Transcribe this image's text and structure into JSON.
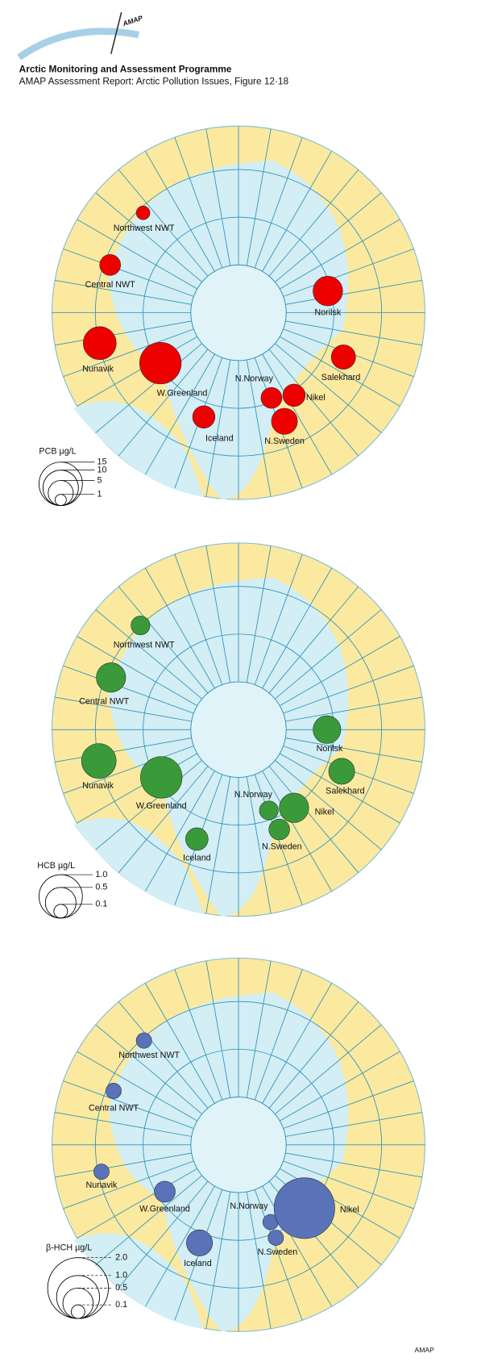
{
  "header": {
    "logo": "AMAP",
    "title": "Arctic Monitoring and Assessment Programme",
    "subtitle": "AMAP Assessment Report: Arctic Pollution Issues, Figure 12·18"
  },
  "maps": [
    {
      "legend_title": "PCB µg/L",
      "color": "#ee0000",
      "legend_ticks": [
        15,
        10,
        5,
        1
      ],
      "sites": [
        {
          "name": "Northwest NWT",
          "value": 1.5
        },
        {
          "name": "Central NWT",
          "value": 3.5
        },
        {
          "name": "Nunavik",
          "value": 8.7
        },
        {
          "name": "W.Greenland",
          "value": 13.8
        },
        {
          "name": "Iceland",
          "value": 4
        },
        {
          "name": "Norilsk",
          "value": 7
        },
        {
          "name": "Salekhard",
          "value": 4.7
        },
        {
          "name": "N.Norway",
          "value": 3.5
        },
        {
          "name": "Nikel",
          "value": 4
        },
        {
          "name": "N.Sweden",
          "value": 5.4
        }
      ]
    },
    {
      "legend_title": "HCB µg/L",
      "color": "#3a9a3a",
      "legend_ticks": [
        {
          "value": 1,
          "label": "1.0"
        },
        0.5,
        0.1
      ],
      "sites": [
        {
          "name": "Northwest NWT",
          "value": 0.19
        },
        {
          "name": "Central NWT",
          "value": 0.46
        },
        {
          "name": "Nunavik",
          "value": 0.64
        },
        {
          "name": "W.Greenland",
          "value": 0.92
        },
        {
          "name": "Iceland",
          "value": 0.27
        },
        {
          "name": "Norilsk",
          "value": 0.41
        },
        {
          "name": "Salekhard",
          "value": 0.36
        },
        {
          "name": "N.Norway",
          "value": 0.19
        },
        {
          "name": "Nikel",
          "value": 0.46
        },
        {
          "name": "N.Sweden",
          "value": 0.23
        }
      ]
    },
    {
      "legend_title": "β-HCH µg/L",
      "color": "#5a72b8",
      "legend_ticks": [
        {
          "value": 2,
          "label": "2.0"
        },
        {
          "value": 1,
          "label": "1.0"
        },
        0.5,
        0.1
      ],
      "sites": [
        {
          "name": "Northwest NWT",
          "value": 0.13
        },
        {
          "name": "Central NWT",
          "value": 0.13
        },
        {
          "name": "Nunavik",
          "value": 0.13
        },
        {
          "name": "W.Greenland",
          "value": 0.24
        },
        {
          "name": "Iceland",
          "value": 0.37
        },
        {
          "name": "N.Norway",
          "value": 0.13
        },
        {
          "name": "Nikel",
          "value": 2
        },
        {
          "name": "N.Sweden",
          "value": 0.13
        }
      ]
    }
  ],
  "footer": "AMAP"
}
